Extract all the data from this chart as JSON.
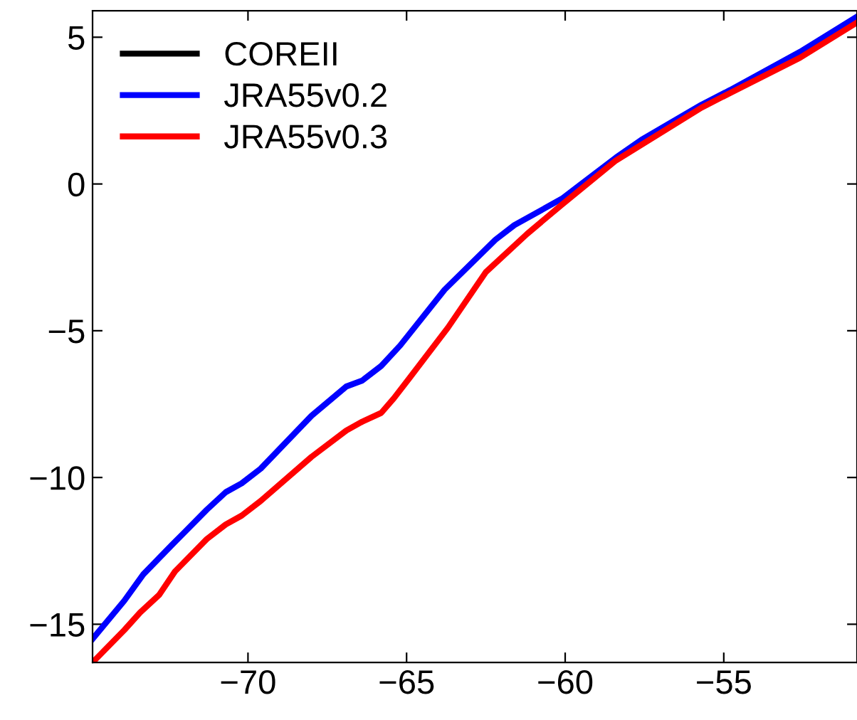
{
  "chart_data": {
    "type": "line",
    "xlim": [
      -74.9,
      -50.8
    ],
    "ylim": [
      -16.3,
      5.9
    ],
    "xticks": [
      -70,
      -65,
      -60,
      -55
    ],
    "yticks": [
      -15,
      -10,
      -5,
      0,
      5
    ],
    "grid": false,
    "legend": "top left",
    "marker": "none",
    "line_style": "solid",
    "series": [
      {
        "name": "COREII",
        "color": "#000000"
      },
      {
        "name": "JRA55v0.2",
        "color": "#0000ff",
        "x": [
          -74.9,
          -73.9,
          -73.3,
          -72.4,
          -71.3,
          -70.7,
          -70.2,
          -69.6,
          -68.0,
          -66.9,
          -66.4,
          -65.8,
          -65.2,
          -63.8,
          -62.2,
          -61.6,
          -60.1,
          -58.4,
          -57.6,
          -55.7,
          -54.8,
          -52.6,
          -50.8
        ],
        "values": [
          -15.5,
          -14.2,
          -13.3,
          -12.3,
          -11.1,
          -10.5,
          -10.2,
          -9.7,
          -7.9,
          -6.9,
          -6.7,
          -6.2,
          -5.5,
          -3.6,
          -1.9,
          -1.4,
          -0.5,
          0.9,
          1.5,
          2.7,
          3.2,
          4.5,
          5.7
        ]
      },
      {
        "name": "JRA55v0.3",
        "color": "#ff0000",
        "x": [
          -74.9,
          -73.9,
          -73.4,
          -72.8,
          -72.3,
          -71.3,
          -70.7,
          -70.2,
          -69.6,
          -68.0,
          -66.9,
          -66.4,
          -65.8,
          -65.4,
          -64.9,
          -63.7,
          -62.5,
          -61.2,
          -60.1,
          -58.4,
          -55.7,
          -54.8,
          -52.6,
          -50.8
        ],
        "values": [
          -16.3,
          -15.2,
          -14.6,
          -14.0,
          -13.2,
          -12.1,
          -11.6,
          -11.3,
          -10.8,
          -9.3,
          -8.4,
          -8.1,
          -7.8,
          -7.3,
          -6.6,
          -4.9,
          -3.0,
          -1.7,
          -0.7,
          0.8,
          2.6,
          3.1,
          4.3,
          5.5
        ]
      }
    ]
  }
}
